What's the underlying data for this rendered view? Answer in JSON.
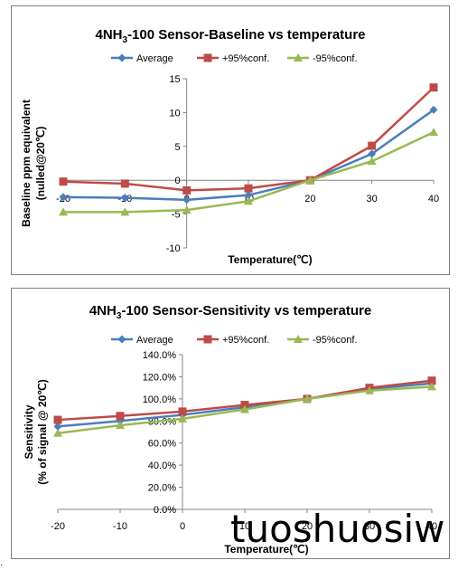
{
  "chart_data": [
    {
      "type": "line",
      "title_main": "4NH",
      "title_sub": "3",
      "title_rest": "-100 Sensor-Baseline vs temperature",
      "xlabel": "Temperature(℃)",
      "ylabel_line1": "Baseline ppm equivalent",
      "ylabel_line2": "(nulled@20℃)",
      "x": [
        -20,
        -10,
        0,
        10,
        20,
        30,
        40
      ],
      "xlim": [
        -20,
        40
      ],
      "ylim": [
        -10,
        15
      ],
      "xticks": [
        "-20",
        "-10",
        "0",
        "10",
        "20",
        "30",
        "40"
      ],
      "yticks": [
        "-10",
        "-5",
        "0",
        "5",
        "10",
        "15"
      ],
      "grid": false,
      "legend": "top",
      "series": [
        {
          "name": "Average",
          "color": "#4a7ebb",
          "marker": "diamond",
          "values": [
            -2.5,
            -2.6,
            -2.9,
            -2.2,
            0,
            3.9,
            10.4
          ]
        },
        {
          "name": "+95%conf.",
          "color": "#be4b48",
          "marker": "square",
          "values": [
            -0.2,
            -0.5,
            -1.5,
            -1.2,
            0,
            5.1,
            13.7
          ]
        },
        {
          "name": "-95%conf.",
          "color": "#98b954",
          "marker": "triangle",
          "values": [
            -4.7,
            -4.7,
            -4.4,
            -3.1,
            0,
            2.8,
            7.1
          ]
        }
      ]
    },
    {
      "type": "line",
      "title_main": "4NH",
      "title_sub": "3",
      "title_rest": "-100 Sensor-Sensitivity vs temperature",
      "xlabel": "Temperature(℃)",
      "ylabel_line1": "Sensitivity",
      "ylabel_line2": "(% of signal @ 20℃)",
      "x": [
        -20,
        -10,
        0,
        10,
        20,
        30,
        40
      ],
      "xlim": [
        -20,
        40
      ],
      "ylim": [
        0,
        140
      ],
      "xticks": [
        "-20",
        "-10",
        "0",
        "10",
        "20",
        "30",
        "40"
      ],
      "yticks": [
        "0.0%",
        "20.0%",
        "40.0%",
        "60.0%",
        "80.0%",
        "100.0%",
        "120.0%",
        "140.0%"
      ],
      "grid": false,
      "legend": "top",
      "series": [
        {
          "name": "Average",
          "color": "#4a7ebb",
          "marker": "diamond",
          "values": [
            75,
            80,
            85.5,
            92.5,
            100,
            109,
            114
          ]
        },
        {
          "name": "+95%conf.",
          "color": "#be4b48",
          "marker": "square",
          "values": [
            81,
            84.5,
            88.5,
            94.5,
            100,
            110,
            116.5
          ]
        },
        {
          "name": "-95%conf.",
          "color": "#98b954",
          "marker": "triangle",
          "values": [
            69,
            76,
            82,
            90.5,
            100,
            107.5,
            111
          ]
        }
      ]
    }
  ],
  "overlay": {
    "watermark": "tuoshuosiw",
    "corner_mark": "·"
  }
}
